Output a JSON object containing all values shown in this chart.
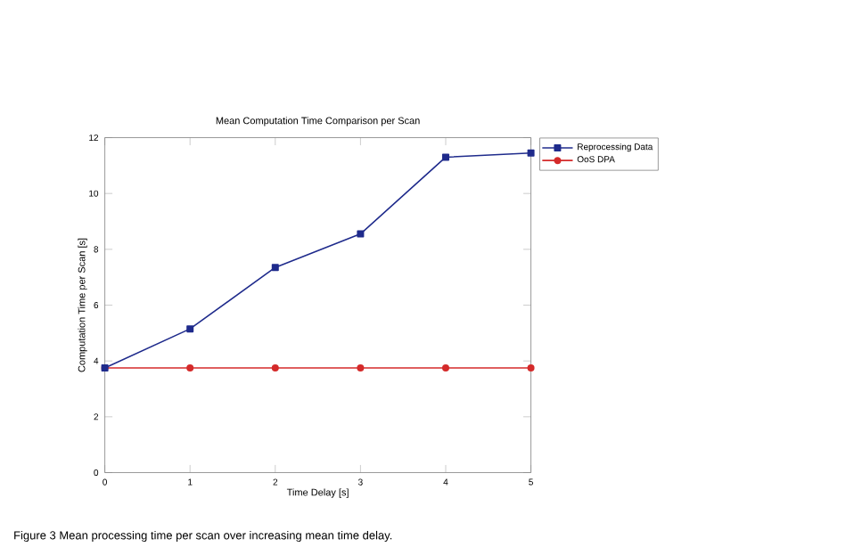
{
  "chart_data": {
    "type": "line",
    "title": "Mean Computation Time Comparison per Scan",
    "xlabel": "Time Delay [s]",
    "ylabel": "Computation Time per Scan [s]",
    "x": [
      0,
      1,
      2,
      3,
      4,
      5
    ],
    "series": [
      {
        "name": "Reprocessing Data",
        "color": "#1f2b8c",
        "values": [
          3.75,
          5.15,
          7.35,
          8.55,
          11.3,
          11.45
        ],
        "marker": "square"
      },
      {
        "name": "OoS DPA",
        "color": "#d42a2a",
        "values": [
          3.75,
          3.75,
          3.75,
          3.75,
          3.75,
          3.75
        ],
        "marker": "circle"
      }
    ],
    "xlim": [
      0,
      5
    ],
    "xticks": [
      0,
      1,
      2,
      3,
      4,
      5
    ],
    "ylim": [
      0,
      12
    ],
    "yticks": [
      0,
      2,
      4,
      6,
      8,
      10,
      12
    ],
    "grid": false,
    "legend": "top right",
    "line_style": "solid",
    "annotations": [
      "Figure 3 Mean processing time per scan over increasing mean time delay."
    ]
  }
}
